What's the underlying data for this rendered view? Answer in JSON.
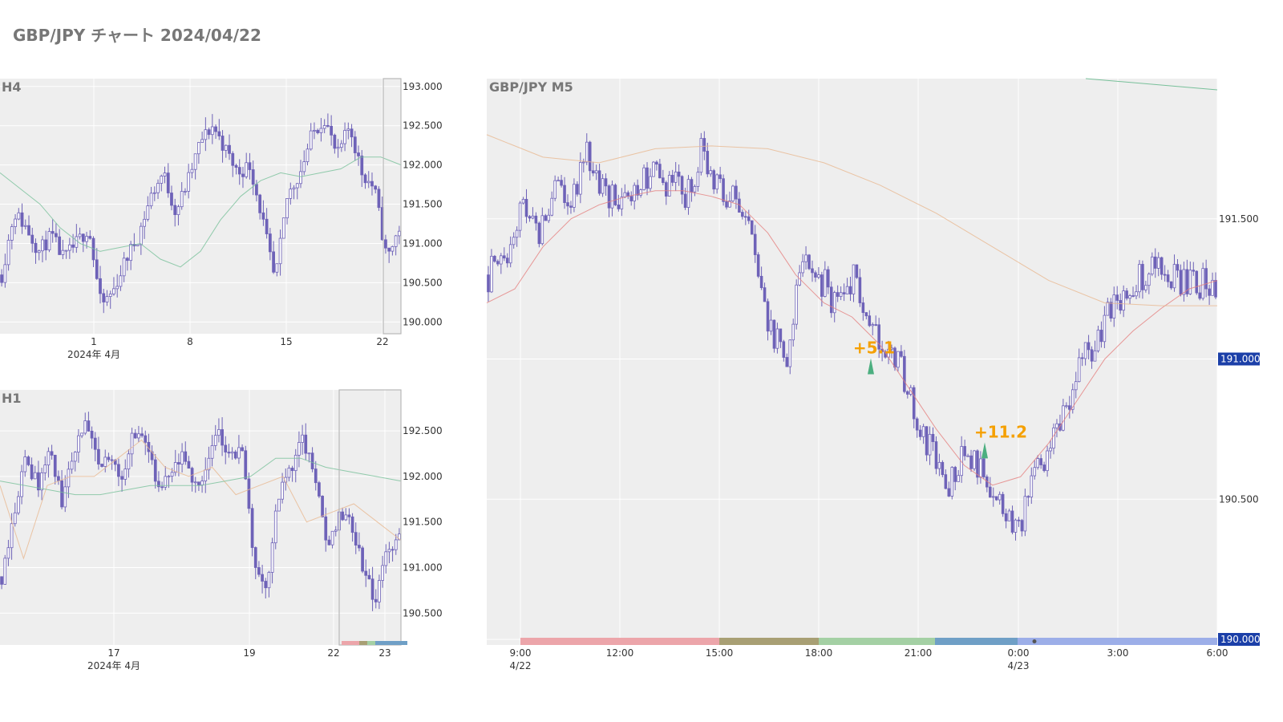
{
  "title": "GBP/JPY チャート 2024/04/22",
  "colors": {
    "candle": "#6e62b8",
    "plot_bg": "#eeeeee",
    "grid": "#ffffff",
    "ma_short": "#e5807e",
    "ma_mid": "#e8b890",
    "ma_long": "#78c09a",
    "annotation": "#f5a000",
    "price_tag": "#1b3fa8",
    "session_tokyo": "#eca5aa",
    "session_overlap1": "#a89f74",
    "session_london": "#a4d0a4",
    "session_overlap2": "#6f9fc6",
    "session_ny": "#9caee8"
  },
  "chart_data": [
    {
      "type": "candlestick",
      "panel_label": "H4",
      "x_ticks": [
        "1",
        "8",
        "15",
        "22"
      ],
      "x_sublabel": "2024年 4月",
      "y_ticks": [
        "190.000",
        "190.500",
        "191.000",
        "191.500",
        "192.000",
        "192.500",
        "193.000"
      ],
      "ylim": [
        189.85,
        193.1
      ],
      "close_path": [
        190.6,
        191.4,
        191.2,
        190.9,
        191.1,
        190.8,
        191.0,
        191.2,
        190.2,
        190.4,
        190.8,
        191.1,
        191.6,
        191.9,
        191.4,
        191.8,
        192.3,
        192.5,
        192.2,
        191.9,
        192.0,
        191.3,
        190.5,
        191.6,
        191.9,
        192.4,
        192.6,
        192.1,
        192.5,
        191.9,
        191.7,
        190.8,
        191.2
      ],
      "ma_long": [
        191.9,
        191.7,
        191.5,
        191.2,
        191.0,
        190.9,
        190.95,
        191.0,
        190.8,
        190.7,
        190.9,
        191.3,
        191.6,
        191.8,
        191.9,
        191.85,
        191.9,
        191.95,
        192.1,
        192.1,
        192.0
      ]
    },
    {
      "type": "candlestick",
      "panel_label": "H1",
      "x_ticks": [
        "17",
        "19",
        "22",
        "23"
      ],
      "x_sublabel": "2024年 4月",
      "y_ticks": [
        "190.500",
        "191.000",
        "191.500",
        "192.000",
        "192.500"
      ],
      "ylim": [
        190.15,
        192.95
      ],
      "close_path": [
        190.9,
        191.6,
        192.2,
        191.9,
        192.3,
        191.7,
        192.3,
        192.6,
        192.1,
        192.2,
        192.0,
        192.5,
        192.4,
        191.8,
        192.0,
        192.2,
        191.9,
        192.1,
        192.5,
        192.2,
        192.3,
        191.0,
        190.8,
        191.8,
        192.1,
        192.4,
        192.0,
        191.2,
        191.6,
        191.5,
        191.0,
        190.6,
        191.2,
        191.3
      ],
      "ma_mid": [
        191.9,
        191.1,
        191.9,
        192.0,
        192.0,
        192.2,
        192.4,
        192.1,
        192.0,
        192.1,
        191.8,
        191.9,
        192.0,
        191.5,
        191.6,
        191.7,
        191.5,
        191.3
      ],
      "ma_long": [
        191.95,
        191.9,
        191.85,
        191.8,
        191.8,
        191.85,
        191.9,
        191.9,
        191.9,
        191.95,
        192.0,
        192.2,
        192.2,
        192.1,
        192.05,
        192.0,
        191.95
      ],
      "session_strip": true
    },
    {
      "type": "candlestick",
      "panel_label": "GBP/JPY M5",
      "x_ticks": [
        "9:00",
        "12:00",
        "15:00",
        "18:00",
        "21:00",
        "0:00",
        "3:00",
        "6:00"
      ],
      "x_sublabels": [
        "4/22",
        "4/23"
      ],
      "y_ticks": [
        "190.500",
        "191.500"
      ],
      "price_tags": [
        "191.000",
        "190.000"
      ],
      "ylim": [
        189.98,
        192.0
      ],
      "close_path": [
        191.3,
        191.35,
        191.55,
        191.45,
        191.6,
        191.58,
        191.72,
        191.6,
        191.55,
        191.6,
        191.68,
        191.62,
        191.58,
        191.75,
        191.62,
        191.55,
        191.4,
        191.1,
        191.0,
        191.35,
        191.3,
        191.2,
        191.3,
        191.1,
        191.05,
        190.95,
        190.75,
        190.65,
        190.55,
        190.68,
        190.6,
        190.45,
        190.38,
        190.55,
        190.7,
        190.85,
        191.0,
        191.1,
        191.2,
        191.25,
        191.32,
        191.3,
        191.28,
        191.27,
        191.25
      ],
      "ma_short": [
        191.2,
        191.25,
        191.4,
        191.5,
        191.55,
        191.58,
        191.6,
        191.6,
        191.58,
        191.55,
        191.45,
        191.3,
        191.2,
        191.15,
        191.05,
        190.9,
        190.75,
        190.62,
        190.55,
        190.58,
        190.7,
        190.85,
        191.0,
        191.1,
        191.18,
        191.25,
        191.28
      ],
      "ma_mid": [
        191.8,
        191.72,
        191.7,
        191.75,
        191.76,
        191.75,
        191.7,
        191.62,
        191.52,
        191.4,
        191.28,
        191.2,
        191.19,
        191.19
      ],
      "ma_long_visible_fragment": true,
      "annotations": [
        {
          "text": "+5.1",
          "at_x": "19:45",
          "y": 191.02
        },
        {
          "text": "+11.2",
          "at_x": "23:10",
          "y": 190.72
        }
      ],
      "session_strip": true
    }
  ]
}
